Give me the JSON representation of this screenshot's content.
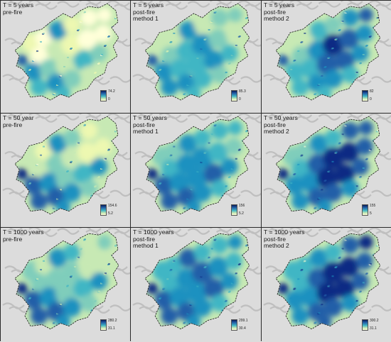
{
  "panels": [
    {
      "lines": [
        "T = 5 years",
        "pre-fire"
      ],
      "legend_max": "74.2",
      "legend_min": "0",
      "scheme": 0
    },
    {
      "lines": [
        "T = 5 years",
        "post-fire",
        "method 1"
      ],
      "legend_max": "85.3",
      "legend_min": "0",
      "scheme": 1
    },
    {
      "lines": [
        "T = 5 years",
        "post-fire",
        "method 2"
      ],
      "legend_max": "82",
      "legend_min": "0",
      "scheme": 2
    },
    {
      "lines": [
        "T = 50 year",
        "pre-fire"
      ],
      "legend_max": "154.6",
      "legend_min": "5.2",
      "scheme": 3
    },
    {
      "lines": [
        "T = 50 years",
        "post-fire",
        "method 1"
      ],
      "legend_max": "156",
      "legend_min": "5.2",
      "scheme": 4
    },
    {
      "lines": [
        "T = 50 years",
        "post-fire",
        "method 2"
      ],
      "legend_max": "155",
      "legend_min": "5",
      "scheme": 5
    },
    {
      "lines": [
        "T = 1000 years",
        "pre-fire"
      ],
      "legend_max": "280.2",
      "legend_min": "31.1",
      "scheme": 6
    },
    {
      "lines": [
        "T = 1000 years",
        "post-fire",
        "method 1"
      ],
      "legend_max": "299.1",
      "legend_min": "30.4",
      "scheme": 7
    },
    {
      "lines": [
        "T = 1000 years",
        "post-fire",
        "method 2"
      ],
      "legend_max": "300.2",
      "legend_min": "31.1",
      "scheme": 8
    }
  ],
  "colors": {
    "palette": [
      "#ffffd9",
      "#edf8b1",
      "#c7e9b4",
      "#7fcdbb",
      "#41b6c4",
      "#1d91c0",
      "#225ea8",
      "#0c2c84"
    ],
    "hillshade_light": "#dcdcdc",
    "hillshade_dark": "#a8a8a8",
    "boundary": "#1a1a1a"
  }
}
